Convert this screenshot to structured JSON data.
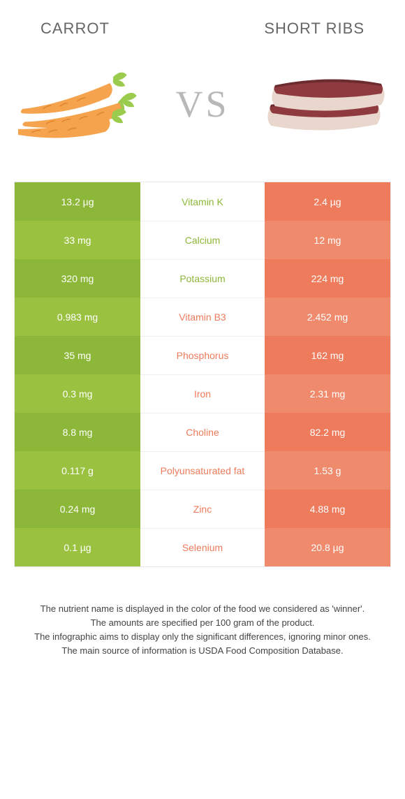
{
  "header": {
    "left_title": "Carrot",
    "right_title": "Short ribs"
  },
  "vs": {
    "label": "VS"
  },
  "colors": {
    "left_base": "#8db738",
    "left_alt": "#9ac240",
    "right_base": "#ed7b5c",
    "right_alt": "#ef8a6d",
    "mid_text_left": "#8db738",
    "mid_text_right": "#ed7b5c"
  },
  "rows": [
    {
      "nutrient": "Vitamin K",
      "left": "13.2 µg",
      "right": "2.4 µg",
      "winner": "left"
    },
    {
      "nutrient": "Calcium",
      "left": "33 mg",
      "right": "12 mg",
      "winner": "left"
    },
    {
      "nutrient": "Potassium",
      "left": "320 mg",
      "right": "224 mg",
      "winner": "left"
    },
    {
      "nutrient": "Vitamin B3",
      "left": "0.983 mg",
      "right": "2.452 mg",
      "winner": "right"
    },
    {
      "nutrient": "Phosphorus",
      "left": "35 mg",
      "right": "162 mg",
      "winner": "right"
    },
    {
      "nutrient": "Iron",
      "left": "0.3 mg",
      "right": "2.31 mg",
      "winner": "right"
    },
    {
      "nutrient": "Choline",
      "left": "8.8 mg",
      "right": "82.2 mg",
      "winner": "right"
    },
    {
      "nutrient": "Polyunsaturated fat",
      "left": "0.117 g",
      "right": "1.53 g",
      "winner": "right"
    },
    {
      "nutrient": "Zinc",
      "left": "0.24 mg",
      "right": "4.88 mg",
      "winner": "right"
    },
    {
      "nutrient": "Selenium",
      "left": "0.1 µg",
      "right": "20.8 µg",
      "winner": "right"
    }
  ],
  "footer": {
    "line1": "The nutrient name is displayed in the color of the food we considered as 'winner'.",
    "line2": "The amounts are specified per 100 gram of the product.",
    "line3": "The infographic aims to display only the significant differences, ignoring minor ones.",
    "line4": "The main source of information is USDA Food Composition Database."
  }
}
